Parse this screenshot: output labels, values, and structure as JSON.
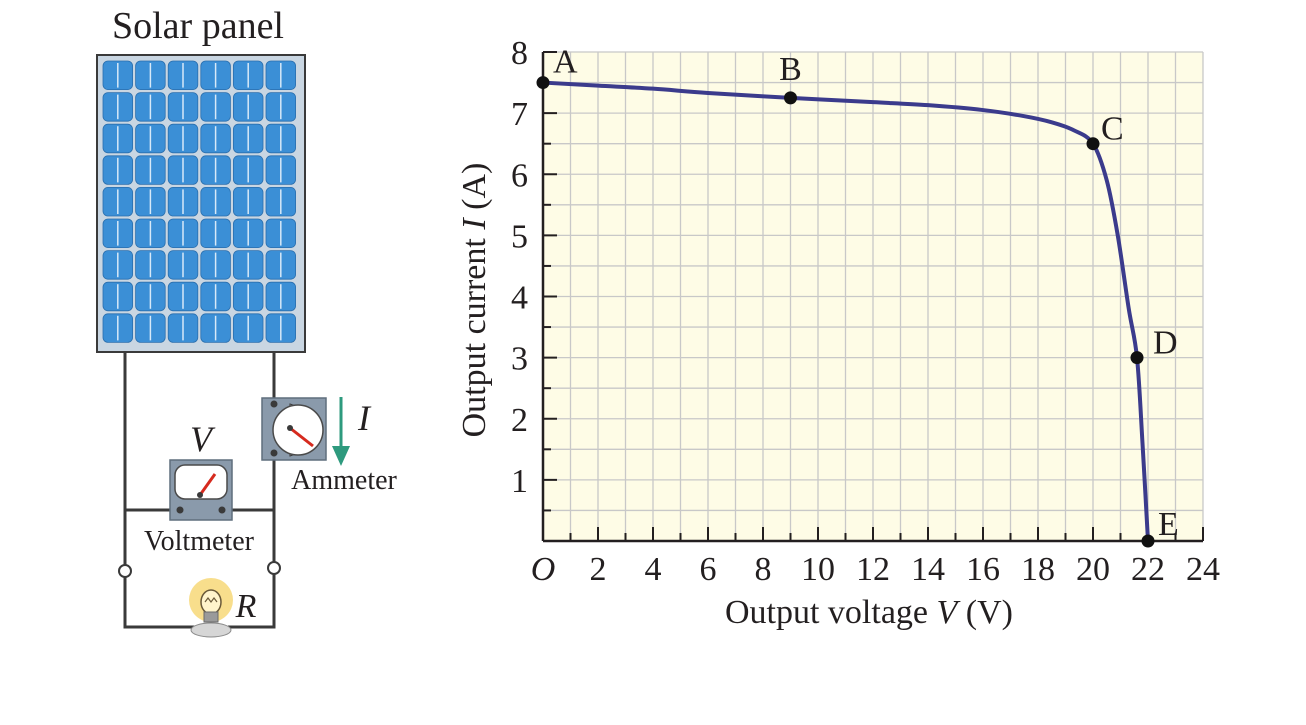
{
  "circuit": {
    "panel_label": "Solar panel",
    "ammeter_label": "Ammeter",
    "voltmeter_label": "Voltmeter",
    "voltage_symbol": "V",
    "current_symbol": "I",
    "resistor_symbol": "R",
    "colors": {
      "panel_cell": "#3b8fd6",
      "panel_frame": "#9fb3c4",
      "wire": "#3a3a3a",
      "meter_body": "#8a9aab",
      "needle": "#d62a1e",
      "current_arrow": "#2e9a7e",
      "bulb_glow": "#f7d878"
    }
  },
  "chart_data": {
    "type": "line",
    "xlabel_prefix": "Output voltage ",
    "xlabel_var": "V",
    "xlabel_unit": " (V)",
    "ylabel_prefix": "Output current ",
    "ylabel_var": "I",
    "ylabel_unit": " (A)",
    "origin_label": "O",
    "xlim": [
      0,
      24
    ],
    "ylim": [
      0,
      8
    ],
    "x_ticks": [
      2,
      4,
      6,
      8,
      10,
      12,
      14,
      16,
      18,
      20,
      22,
      24
    ],
    "y_ticks": [
      1,
      2,
      3,
      4,
      5,
      6,
      7,
      8
    ],
    "grid": true,
    "grid_minor_step_x": 1,
    "grid_minor_step_y": 0.5,
    "series": [
      {
        "x": [
          0,
          2,
          4,
          6,
          9,
          12,
          14,
          16,
          17.5,
          18.5,
          19.3,
          20,
          20.5,
          20.9,
          21.3,
          21.6,
          21.8,
          22
        ],
        "y": [
          7.5,
          7.45,
          7.4,
          7.33,
          7.25,
          7.18,
          7.13,
          7.05,
          6.95,
          6.85,
          6.72,
          6.5,
          5.9,
          5.0,
          3.8,
          3.0,
          1.6,
          0
        ]
      }
    ],
    "points": [
      {
        "label": "A",
        "x": 0,
        "y": 7.5
      },
      {
        "label": "B",
        "x": 9,
        "y": 7.25
      },
      {
        "label": "C",
        "x": 20,
        "y": 6.5
      },
      {
        "label": "D",
        "x": 21.6,
        "y": 3.0
      },
      {
        "label": "E",
        "x": 22,
        "y": 0
      }
    ],
    "colors": {
      "background": "#fefce6",
      "grid": "#c8c8c8",
      "axis": "#231f20",
      "curve": "#3b3b8c",
      "point": "#111111"
    }
  }
}
